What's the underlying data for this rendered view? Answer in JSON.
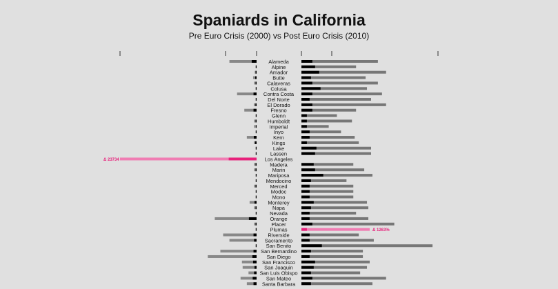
{
  "chart_data": {
    "type": "bar",
    "title": "Spaniards in California",
    "subtitle": "Pre Euro Crisis (2000) vs Post Euro Crisis (2010)",
    "colors": {
      "left_gray": "#888888",
      "right_gray": "#777777",
      "black": "#000000",
      "highlight": "#e7217b",
      "highlight_light": "#f07db3"
    },
    "highlight_labels": {
      "los_angeles": "Δ 23734",
      "plumas": "Δ 1263%"
    },
    "rows": [
      {
        "name": "Alameda",
        "left_total": 1950,
        "left_black": 350,
        "right_total": 560,
        "right_black": 80
      },
      {
        "name": "Alpine",
        "left_total": 80,
        "left_black": 50,
        "right_total": 400,
        "right_black": 100
      },
      {
        "name": "Amador",
        "left_total": 130,
        "left_black": 70,
        "right_total": 620,
        "right_black": 130
      },
      {
        "name": "Butte",
        "left_total": 250,
        "left_black": 100,
        "right_total": 470,
        "right_black": 70
      },
      {
        "name": "Calaveras",
        "left_total": 180,
        "left_black": 70,
        "right_total": 560,
        "right_black": 80
      },
      {
        "name": "Colusa",
        "left_total": 80,
        "left_black": 50,
        "right_total": 480,
        "right_black": 140
      },
      {
        "name": "Contra Costa",
        "left_total": 1400,
        "left_black": 220,
        "right_total": 590,
        "right_black": 80
      },
      {
        "name": "Del Norte",
        "left_total": 80,
        "left_black": 50,
        "right_total": 510,
        "right_black": 60
      },
      {
        "name": "El Dorado",
        "left_total": 200,
        "left_black": 80,
        "right_total": 620,
        "right_black": 80
      },
      {
        "name": "Fresno",
        "left_total": 880,
        "left_black": 220,
        "right_total": 400,
        "right_black": 80
      },
      {
        "name": "Glenn",
        "left_total": 80,
        "left_black": 50,
        "right_total": 260,
        "right_black": 40
      },
      {
        "name": "Humboldt",
        "left_total": 180,
        "left_black": 70,
        "right_total": 370,
        "right_black": 40
      },
      {
        "name": "Imperial",
        "left_total": 180,
        "left_black": 50,
        "right_total": 200,
        "right_black": 40
      },
      {
        "name": "Inyo",
        "left_total": 80,
        "left_black": 50,
        "right_total": 290,
        "right_black": 60
      },
      {
        "name": "Kern",
        "left_total": 700,
        "left_black": 200,
        "right_total": 390,
        "right_black": 60
      },
      {
        "name": "Kings",
        "left_total": 200,
        "left_black": 100,
        "right_total": 420,
        "right_black": 40
      },
      {
        "name": "Lake",
        "left_total": 80,
        "left_black": 50,
        "right_total": 510,
        "right_black": 110
      },
      {
        "name": "Lassen",
        "left_total": 80,
        "left_black": 50,
        "right_total": 510,
        "right_black": 100
      },
      {
        "name": "Los Angeles",
        "left_total": 9800,
        "left_black": 2000,
        "right_total": 0,
        "right_black": 0,
        "highlight": "left"
      },
      {
        "name": "Madera",
        "left_total": 180,
        "left_black": 70,
        "right_total": 380,
        "right_black": 90
      },
      {
        "name": "Marin",
        "left_total": 180,
        "left_black": 70,
        "right_total": 460,
        "right_black": 100
      },
      {
        "name": "Mariposa",
        "left_total": 80,
        "left_black": 50,
        "right_total": 520,
        "right_black": 160
      },
      {
        "name": "Mendocino",
        "left_total": 80,
        "left_black": 50,
        "right_total": 330,
        "right_black": 70
      },
      {
        "name": "Merced",
        "left_total": 180,
        "left_black": 70,
        "right_total": 380,
        "right_black": 60
      },
      {
        "name": "Modoc",
        "left_total": 80,
        "left_black": 50,
        "right_total": 380,
        "right_black": 60
      },
      {
        "name": "Mono",
        "left_total": 80,
        "left_black": 50,
        "right_total": 380,
        "right_black": 60
      },
      {
        "name": "Monterey",
        "left_total": 500,
        "left_black": 150,
        "right_total": 480,
        "right_black": 90
      },
      {
        "name": "Napa",
        "left_total": 180,
        "left_black": 70,
        "right_total": 490,
        "right_black": 70
      },
      {
        "name": "Nevada",
        "left_total": 80,
        "left_black": 50,
        "right_total": 400,
        "right_black": 60
      },
      {
        "name": "Orange",
        "left_total": 3000,
        "left_black": 550,
        "right_total": 490,
        "right_black": 60
      },
      {
        "name": "Placer",
        "left_total": 180,
        "left_black": 70,
        "right_total": 680,
        "right_black": 80
      },
      {
        "name": "Plumas",
        "left_total": 80,
        "left_black": 50,
        "right_total": 500,
        "right_black": 40,
        "highlight": "right"
      },
      {
        "name": "Riverside",
        "left_total": 2400,
        "left_black": 220,
        "right_total": 420,
        "right_black": 60
      },
      {
        "name": "Sacramento",
        "left_total": 1950,
        "left_black": 180,
        "right_total": 530,
        "right_black": 60
      },
      {
        "name": "San Benito",
        "left_total": 80,
        "left_black": 50,
        "right_total": 960,
        "right_black": 150
      },
      {
        "name": "San Bernardino",
        "left_total": 2600,
        "left_black": 220,
        "right_total": 450,
        "right_black": 70
      },
      {
        "name": "San Diego",
        "left_total": 3500,
        "left_black": 300,
        "right_total": 450,
        "right_black": 60
      },
      {
        "name": "San Francisco",
        "left_total": 1050,
        "left_black": 250,
        "right_total": 500,
        "right_black": 100
      },
      {
        "name": "San Joaquin",
        "left_total": 1000,
        "left_black": 150,
        "right_total": 480,
        "right_black": 90
      },
      {
        "name": "San Luis Obispo",
        "left_total": 580,
        "left_black": 180,
        "right_total": 430,
        "right_black": 70
      },
      {
        "name": "San Mateo",
        "left_total": 1150,
        "left_black": 280,
        "right_total": 620,
        "right_black": 80
      },
      {
        "name": "Santa Barbara",
        "left_total": 700,
        "left_black": 220,
        "right_total": 520,
        "right_black": 70
      }
    ]
  }
}
